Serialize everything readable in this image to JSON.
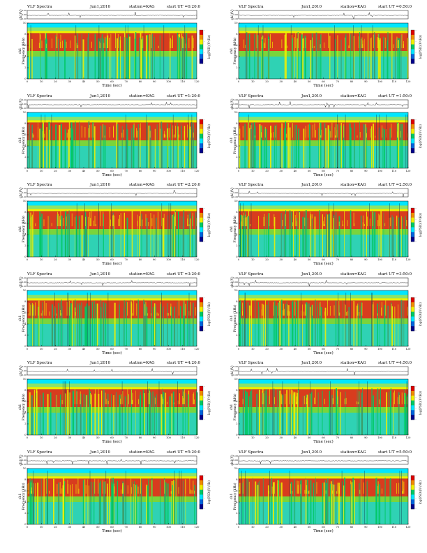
{
  "chart_data": {
    "type": "heatmap",
    "shared": {
      "x_ticks": [
        "0",
        "10",
        "20",
        "30",
        "40",
        "50",
        "60",
        "70",
        "80",
        "90",
        "100",
        "110",
        "120"
      ],
      "xlim": [
        0,
        120
      ],
      "xlabel": "Time (sec)",
      "top_ylabel": "ch1(V)",
      "top_ticks": [
        "0.20",
        "0.00",
        "-0.20"
      ],
      "top_ylim": [
        -0.2,
        0.2
      ],
      "spec_ylabel_a": "ch1",
      "spec_ylabel_b": "Frequency (kHz)",
      "spec_ticks": [
        "0",
        "2",
        "4",
        "6",
        "8",
        "10"
      ],
      "ylim": [
        0,
        10
      ],
      "colorbar_label": "log(PSD)(V²/Hz)",
      "colorbar_ticks": [
        "-",
        "-",
        "-",
        "-"
      ],
      "colors": {
        "low": "#00008b",
        "mid": "#00c8c8",
        "high": "#dc0000",
        "band": "#00e6ff",
        "green": "#00c864",
        "yellow": "#f0f000"
      }
    },
    "panels": [
      {
        "title_left": "VLF Spectra",
        "title_mid": "Jun1,2010",
        "title_station": "station=KAG",
        "title_ut": "start UT =0:20:0"
      },
      {
        "title_left": "VLF Spectra",
        "title_mid": "Jun1,2010",
        "title_station": "station=KAG",
        "title_ut": "start UT =0:50:0"
      },
      {
        "title_left": "VLF Spectra",
        "title_mid": "Jun1,2010",
        "title_station": "station=KAG",
        "title_ut": "start UT =1:20:0"
      },
      {
        "title_left": "VLF Spectra",
        "title_mid": "Jun1,2010",
        "title_station": "station=KAG",
        "title_ut": "start UT =1:50:0"
      },
      {
        "title_left": "VLF Spectra",
        "title_mid": "Jun1,2010",
        "title_station": "station=KAG",
        "title_ut": "start UT =2:20:0"
      },
      {
        "title_left": "VLF Spectra",
        "title_mid": "Jun1,2010",
        "title_station": "station=KAG",
        "title_ut": "start UT =2:50:0"
      },
      {
        "title_left": "VLF Spectra",
        "title_mid": "Jun1,2010",
        "title_station": "station=KAG",
        "title_ut": "start UT =3:20:0"
      },
      {
        "title_left": "VLF Spectra",
        "title_mid": "Jun1,2010",
        "title_station": "station=KAG",
        "title_ut": "start UT =3:50:0"
      },
      {
        "title_left": "VLF Spectra",
        "title_mid": "Jun1,2010",
        "title_station": "station=KAG",
        "title_ut": "start UT =4:20:0"
      },
      {
        "title_left": "VLF Spectra",
        "title_mid": "Jun1,2010",
        "title_station": "station=KAG",
        "title_ut": "start UT =4:50:0"
      },
      {
        "title_left": "VLF Spectra",
        "title_mid": "Jun1,2010",
        "title_station": "station=KAG",
        "title_ut": "start UT =5:20:0"
      },
      {
        "title_left": "VLF Spectra",
        "title_mid": "Jun1,2010",
        "title_station": "station=KAG",
        "title_ut": "start UT =5:50:0"
      }
    ]
  }
}
